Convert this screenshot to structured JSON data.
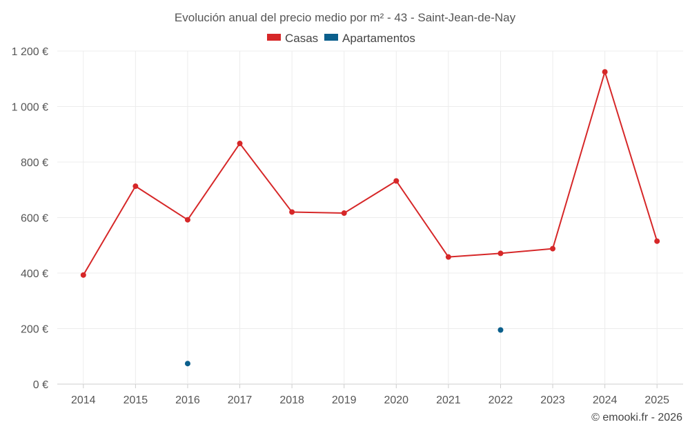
{
  "chart_data": {
    "type": "line",
    "title": "Evolución anual del precio medio por m² - 43 - Saint-Jean-de-Nay",
    "categories": [
      "2014",
      "2015",
      "2016",
      "2017",
      "2018",
      "2019",
      "2020",
      "2021",
      "2022",
      "2023",
      "2024",
      "2025"
    ],
    "series": [
      {
        "name": "Casas",
        "color": "#d62728",
        "values": [
          393,
          713,
          592,
          867,
          620,
          616,
          732,
          458,
          471,
          488,
          1125,
          515
        ]
      },
      {
        "name": "Apartamentos",
        "color": "#0b5f8c",
        "values": [
          null,
          null,
          74,
          null,
          null,
          null,
          null,
          null,
          195,
          null,
          null,
          null
        ]
      }
    ],
    "ylim": [
      0,
      1200
    ],
    "yticks": [
      0,
      200,
      400,
      600,
      800,
      1000,
      1200
    ],
    "ytick_labels": [
      "0 €",
      "200 €",
      "400 €",
      "600 €",
      "800 €",
      "1 000 €",
      "1 200 €"
    ],
    "xlabel": "",
    "ylabel": "",
    "grid": true,
    "legend_position": "top-center"
  },
  "credit": "© emooki.fr - 2026"
}
